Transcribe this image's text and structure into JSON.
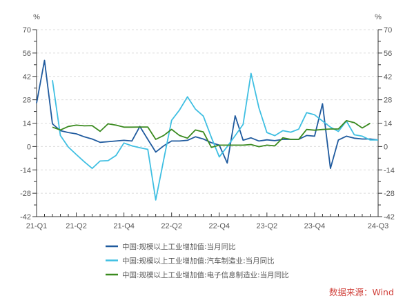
{
  "chart_data": {
    "type": "line",
    "title": "",
    "ylabel_left": "%",
    "ylabel_right": "%",
    "ylim": [
      -42,
      70
    ],
    "yticks": [
      -42,
      -28,
      -14,
      0,
      14,
      28,
      42,
      56,
      70
    ],
    "grid": true,
    "x_count": 44,
    "xticks": [
      {
        "index": 0,
        "label": "21-Q1"
      },
      {
        "index": 5,
        "label": "21-Q2"
      },
      {
        "index": 11,
        "label": "21-Q4"
      },
      {
        "index": 17,
        "label": "22-Q2"
      },
      {
        "index": 23,
        "label": "22-Q4"
      },
      {
        "index": 29,
        "label": "23-Q2"
      },
      {
        "index": 35,
        "label": "23-Q4"
      },
      {
        "index": 43,
        "label": "24-Q3"
      }
    ],
    "legend_placement": "bottom",
    "series": [
      {
        "name": "中国:规模以上工业增加值:当月同比",
        "color": "#1f5a9e",
        "values": [
          26,
          51.6,
          13.6,
          9.5,
          8.4,
          7.6,
          5.8,
          4.5,
          2.5,
          2.9,
          3.3,
          3.7,
          3.3,
          12,
          4.3,
          -3.3,
          0.4,
          3.3,
          3.3,
          3.7,
          5.8,
          4.5,
          2.3,
          0.8,
          -9.9,
          18.4,
          3.8,
          5.2,
          3.3,
          4,
          3.5,
          4.3,
          4.3,
          4.3,
          6.6,
          6.2,
          25.6,
          -13.1,
          3.9,
          6.2,
          5,
          4.5,
          4.5,
          3.9
        ]
      },
      {
        "name": "中国:规模以上工业增加值:汽车制造业:当月同比",
        "color": "#3fbfe2",
        "values": [
          null,
          null,
          39.7,
          6.6,
          -0.3,
          -4.8,
          -9.1,
          -13.1,
          -8.7,
          -8.5,
          -5.4,
          2.1,
          0.4,
          -0.7,
          -1.7,
          -32,
          -8,
          15.7,
          21.9,
          29.8,
          22.4,
          18.2,
          5.5,
          -6.2,
          0,
          6.5,
          13.2,
          43.8,
          23.1,
          8.4,
          6.5,
          9.5,
          8.6,
          10.4,
          20.3,
          19,
          15.3,
          11.6,
          9.1,
          15.3,
          7,
          6.2,
          3.9,
          3.9
        ]
      },
      {
        "name": "中国:规模以上工业增加值:电子信息制造业:当月同比",
        "color": "#3a8a1f",
        "values": [
          null,
          null,
          11.6,
          9.9,
          12,
          12.8,
          12.4,
          12.5,
          9.1,
          13.6,
          12.8,
          11.6,
          11.6,
          11.7,
          11.7,
          4.3,
          6.6,
          10.3,
          6.6,
          5,
          9.9,
          8.7,
          -0.5,
          0.8,
          0.8,
          0.8,
          0.8,
          1.2,
          -0.1,
          0.8,
          0.4,
          5.2,
          4.3,
          4.3,
          10.2,
          9.8,
          10.2,
          10.5,
          10.5,
          15.5,
          14.3,
          11.1,
          13.9,
          null
        ]
      }
    ]
  },
  "source": {
    "text": "数据来源：Wind",
    "color": "#d0403a"
  }
}
